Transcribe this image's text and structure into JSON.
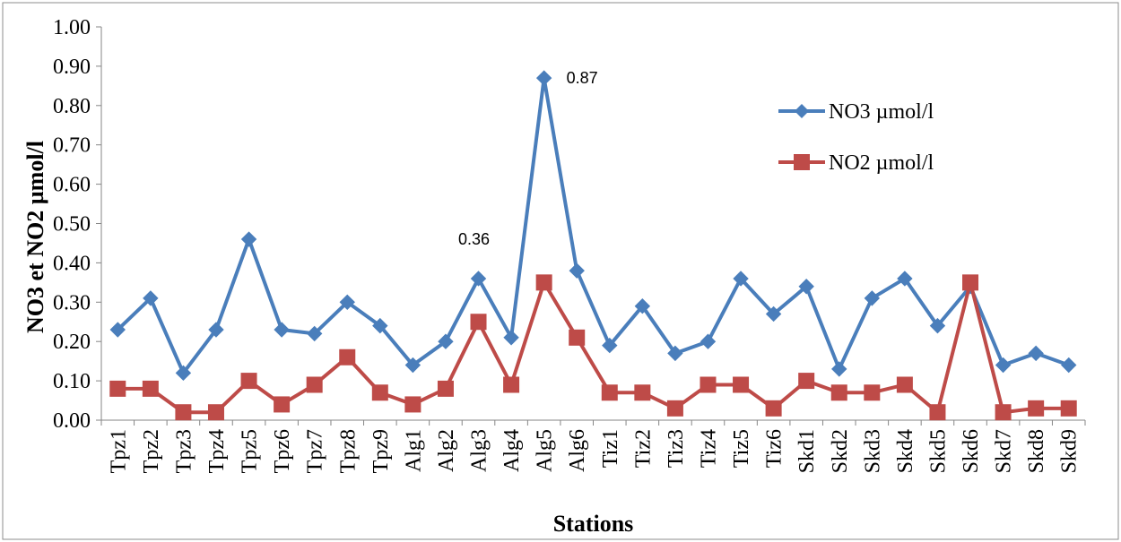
{
  "chart_data": {
    "type": "line",
    "title": "",
    "xlabel": "Stations",
    "ylabel": "NO3 et NO2 µmol/l",
    "ylim": [
      0,
      1.0
    ],
    "ytick_step": 0.1,
    "yticks": [
      "0.00",
      "0.10",
      "0.20",
      "0.30",
      "0.40",
      "0.50",
      "0.60",
      "0.70",
      "0.80",
      "0.90",
      "1.00"
    ],
    "grid": false,
    "legend_position": "top-right",
    "categories": [
      "Tpz1",
      "Tpz2",
      "Tpz3",
      "Tpz4",
      "Tpz5",
      "Tpz6",
      "Tpz7",
      "Tpz8",
      "Tpz9",
      "Alg1",
      "Alg2",
      "Alg3",
      "Alg4",
      "Alg5",
      "Alg6",
      "Tiz1",
      "Tiz2",
      "Tiz3",
      "Tiz4",
      "Tiz5",
      "Tiz6",
      "Skd1",
      "Skd2",
      "Skd3",
      "Skd4",
      "Skd5",
      "Skd6",
      "Skd7",
      "Skd8",
      "Skd9"
    ],
    "series": [
      {
        "name": "NO3 µmol/l",
        "color": "#4a7ebb",
        "marker": "diamond",
        "values": [
          0.23,
          0.31,
          0.12,
          0.23,
          0.46,
          0.23,
          0.22,
          0.3,
          0.24,
          0.14,
          0.2,
          0.36,
          0.21,
          0.87,
          0.38,
          0.19,
          0.29,
          0.17,
          0.2,
          0.36,
          0.27,
          0.34,
          0.13,
          0.31,
          0.36,
          0.24,
          0.34,
          0.14,
          0.17,
          0.14
        ]
      },
      {
        "name": "NO2 µmol/l",
        "color": "#be4b48",
        "marker": "square",
        "values": [
          0.08,
          0.08,
          0.02,
          0.02,
          0.1,
          0.04,
          0.09,
          0.16,
          0.07,
          0.04,
          0.08,
          0.25,
          0.09,
          0.35,
          0.21,
          0.07,
          0.07,
          0.03,
          0.09,
          0.09,
          0.03,
          0.1,
          0.07,
          0.07,
          0.09,
          0.02,
          0.35,
          0.02,
          0.03,
          0.03
        ]
      }
    ],
    "annotations": [
      {
        "text": "0.87",
        "series": 0,
        "category": "Alg5"
      },
      {
        "text": "0.36",
        "series": 0,
        "category": "Alg3"
      }
    ]
  }
}
